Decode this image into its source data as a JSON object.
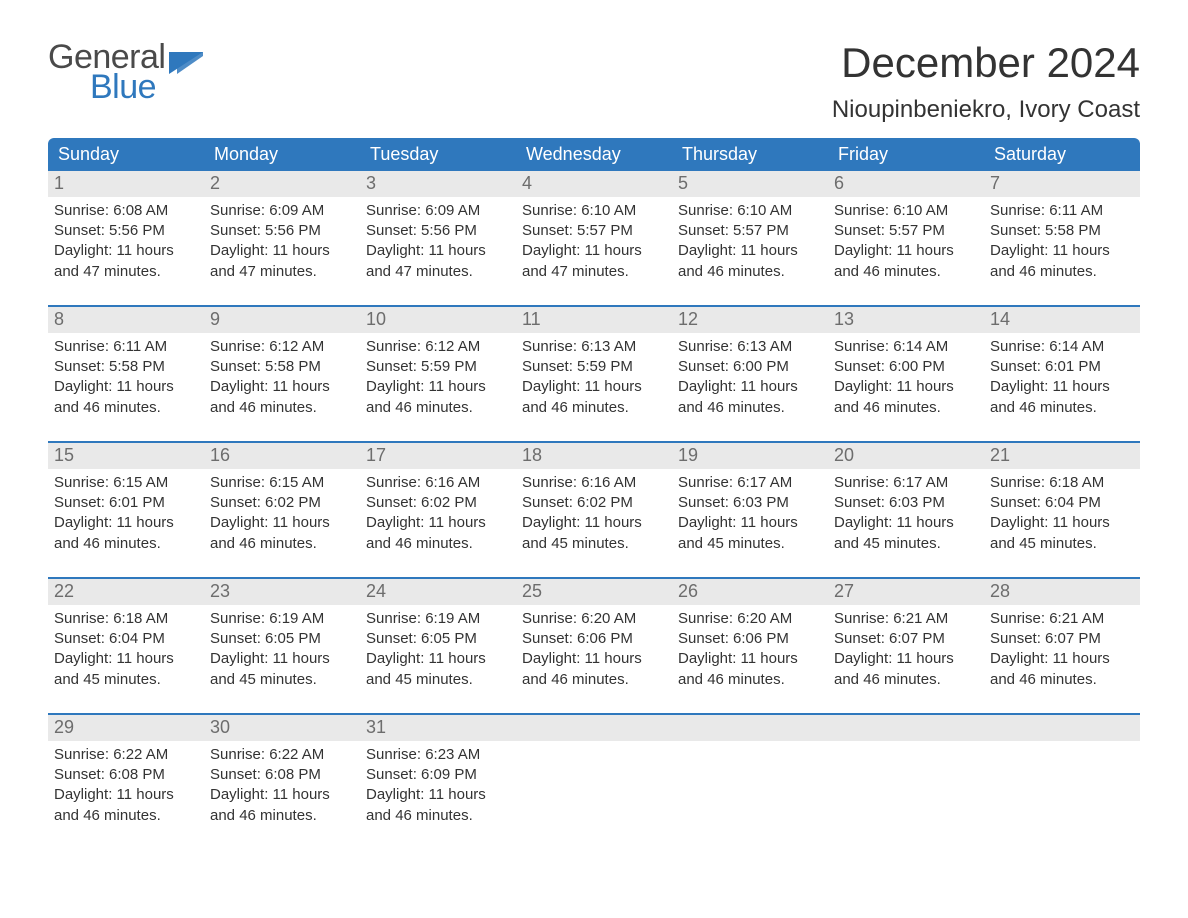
{
  "logo": {
    "word_general": "General",
    "word_blue": "Blue",
    "icon_name": "generalblue-logo",
    "icon_color": "#2f78bd",
    "text_general_color": "#4a4a4a",
    "text_blue_color": "#2f78bd"
  },
  "header": {
    "month_title": "December 2024",
    "location": "Nioupinbeniekro, Ivory Coast",
    "month_title_fontsize": 42,
    "location_fontsize": 24
  },
  "calendar": {
    "type": "table",
    "header_bg": "#2f78bd",
    "header_text_color": "#ffffff",
    "week_separator_color": "#2f78bd",
    "date_bar_bg": "#e9e9e9",
    "date_bar_text_color": "#6d6d6d",
    "body_text_color": "#333333",
    "background_color": "#ffffff",
    "header_fontsize": 18,
    "date_fontsize": 18,
    "body_fontsize": 15,
    "columns": 7,
    "day_headers": [
      "Sunday",
      "Monday",
      "Tuesday",
      "Wednesday",
      "Thursday",
      "Friday",
      "Saturday"
    ],
    "labels": {
      "sunrise_prefix": "Sunrise: ",
      "sunset_prefix": "Sunset: ",
      "daylight_prefix": "Daylight: "
    },
    "weeks": [
      [
        {
          "date": "1",
          "sunrise": "6:08 AM",
          "sunset": "5:56 PM",
          "daylight": "11 hours and 47 minutes."
        },
        {
          "date": "2",
          "sunrise": "6:09 AM",
          "sunset": "5:56 PM",
          "daylight": "11 hours and 47 minutes."
        },
        {
          "date": "3",
          "sunrise": "6:09 AM",
          "sunset": "5:56 PM",
          "daylight": "11 hours and 47 minutes."
        },
        {
          "date": "4",
          "sunrise": "6:10 AM",
          "sunset": "5:57 PM",
          "daylight": "11 hours and 47 minutes."
        },
        {
          "date": "5",
          "sunrise": "6:10 AM",
          "sunset": "5:57 PM",
          "daylight": "11 hours and 46 minutes."
        },
        {
          "date": "6",
          "sunrise": "6:10 AM",
          "sunset": "5:57 PM",
          "daylight": "11 hours and 46 minutes."
        },
        {
          "date": "7",
          "sunrise": "6:11 AM",
          "sunset": "5:58 PM",
          "daylight": "11 hours and 46 minutes."
        }
      ],
      [
        {
          "date": "8",
          "sunrise": "6:11 AM",
          "sunset": "5:58 PM",
          "daylight": "11 hours and 46 minutes."
        },
        {
          "date": "9",
          "sunrise": "6:12 AM",
          "sunset": "5:58 PM",
          "daylight": "11 hours and 46 minutes."
        },
        {
          "date": "10",
          "sunrise": "6:12 AM",
          "sunset": "5:59 PM",
          "daylight": "11 hours and 46 minutes."
        },
        {
          "date": "11",
          "sunrise": "6:13 AM",
          "sunset": "5:59 PM",
          "daylight": "11 hours and 46 minutes."
        },
        {
          "date": "12",
          "sunrise": "6:13 AM",
          "sunset": "6:00 PM",
          "daylight": "11 hours and 46 minutes."
        },
        {
          "date": "13",
          "sunrise": "6:14 AM",
          "sunset": "6:00 PM",
          "daylight": "11 hours and 46 minutes."
        },
        {
          "date": "14",
          "sunrise": "6:14 AM",
          "sunset": "6:01 PM",
          "daylight": "11 hours and 46 minutes."
        }
      ],
      [
        {
          "date": "15",
          "sunrise": "6:15 AM",
          "sunset": "6:01 PM",
          "daylight": "11 hours and 46 minutes."
        },
        {
          "date": "16",
          "sunrise": "6:15 AM",
          "sunset": "6:02 PM",
          "daylight": "11 hours and 46 minutes."
        },
        {
          "date": "17",
          "sunrise": "6:16 AM",
          "sunset": "6:02 PM",
          "daylight": "11 hours and 46 minutes."
        },
        {
          "date": "18",
          "sunrise": "6:16 AM",
          "sunset": "6:02 PM",
          "daylight": "11 hours and 45 minutes."
        },
        {
          "date": "19",
          "sunrise": "6:17 AM",
          "sunset": "6:03 PM",
          "daylight": "11 hours and 45 minutes."
        },
        {
          "date": "20",
          "sunrise": "6:17 AM",
          "sunset": "6:03 PM",
          "daylight": "11 hours and 45 minutes."
        },
        {
          "date": "21",
          "sunrise": "6:18 AM",
          "sunset": "6:04 PM",
          "daylight": "11 hours and 45 minutes."
        }
      ],
      [
        {
          "date": "22",
          "sunrise": "6:18 AM",
          "sunset": "6:04 PM",
          "daylight": "11 hours and 45 minutes."
        },
        {
          "date": "23",
          "sunrise": "6:19 AM",
          "sunset": "6:05 PM",
          "daylight": "11 hours and 45 minutes."
        },
        {
          "date": "24",
          "sunrise": "6:19 AM",
          "sunset": "6:05 PM",
          "daylight": "11 hours and 45 minutes."
        },
        {
          "date": "25",
          "sunrise": "6:20 AM",
          "sunset": "6:06 PM",
          "daylight": "11 hours and 46 minutes."
        },
        {
          "date": "26",
          "sunrise": "6:20 AM",
          "sunset": "6:06 PM",
          "daylight": "11 hours and 46 minutes."
        },
        {
          "date": "27",
          "sunrise": "6:21 AM",
          "sunset": "6:07 PM",
          "daylight": "11 hours and 46 minutes."
        },
        {
          "date": "28",
          "sunrise": "6:21 AM",
          "sunset": "6:07 PM",
          "daylight": "11 hours and 46 minutes."
        }
      ],
      [
        {
          "date": "29",
          "sunrise": "6:22 AM",
          "sunset": "6:08 PM",
          "daylight": "11 hours and 46 minutes."
        },
        {
          "date": "30",
          "sunrise": "6:22 AM",
          "sunset": "6:08 PM",
          "daylight": "11 hours and 46 minutes."
        },
        {
          "date": "31",
          "sunrise": "6:23 AM",
          "sunset": "6:09 PM",
          "daylight": "11 hours and 46 minutes."
        },
        {
          "empty": true
        },
        {
          "empty": true
        },
        {
          "empty": true
        },
        {
          "empty": true
        }
      ]
    ]
  }
}
